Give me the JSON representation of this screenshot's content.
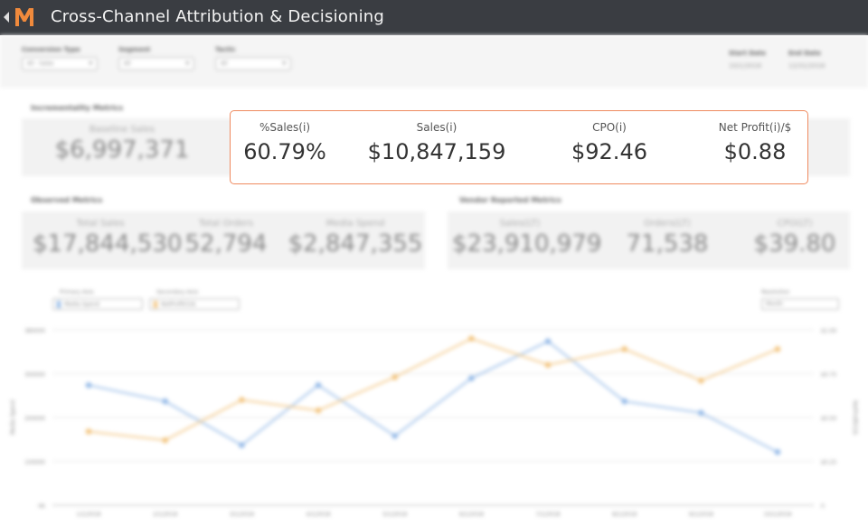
{
  "header": {
    "title": "Cross-Channel Attribution & Decisioning",
    "logo_letter": "M",
    "colors": {
      "bar": "#3a3d42",
      "logo": "#f08a3c"
    }
  },
  "filters": [
    {
      "label": "Conversion Type",
      "value": "All - Sales"
    },
    {
      "label": "Segment",
      "value": "All"
    },
    {
      "label": "Tactic",
      "value": "All"
    }
  ],
  "dates": {
    "start_label": "Start Date",
    "start_value": "10/1/2018",
    "end_label": "End Date",
    "end_value": "12/31/2018"
  },
  "incrementality": {
    "title": "Incrementality Metrics",
    "baseline_label": "Baseline Sales",
    "baseline_value": "$6,997,371"
  },
  "highlight": {
    "border_color": "#ef8a5f",
    "metrics": [
      {
        "label": "%Sales(i)",
        "value": "60.79%"
      },
      {
        "label": "Sales(i)",
        "value": "$10,847,159"
      },
      {
        "label": "CPO(i)",
        "value": "$92.46"
      },
      {
        "label": "Net Profit(i)/$",
        "value": "$0.88"
      }
    ]
  },
  "observed": {
    "title": "Observed Metrics",
    "metrics": [
      {
        "label": "Total Sales",
        "value": "$17,844,530"
      },
      {
        "label": "Total Orders",
        "value": "52,794"
      },
      {
        "label": "Media Spend",
        "value": "$2,847,355"
      }
    ]
  },
  "vendor": {
    "title": "Vendor Reported Metrics",
    "metrics": [
      {
        "label": "Sales(LT)",
        "value": "$23,910,979"
      },
      {
        "label": "Orders(LT)",
        "value": "71,538"
      },
      {
        "label": "CPO(LT)",
        "value": "$39.80"
      }
    ]
  },
  "axis_controls": {
    "primary_label": "Primary Axis",
    "primary_value": "Media Spend",
    "secondary_label": "Secondary Axis",
    "secondary_value": "NetProfit(i)/$",
    "resolution_label": "Resolution",
    "resolution_value": "Month"
  },
  "chart_data": {
    "type": "line",
    "x": [
      "1/1/2018",
      "2/1/2018",
      "3/1/2018",
      "4/1/2018",
      "5/1/2018",
      "6/1/2018",
      "7/1/2018",
      "8/1/2018",
      "9/1/2018",
      "10/1/2018"
    ],
    "ylabel": "Media Spend",
    "y2label": "NetProfit(i)/$",
    "ylim": [
      0,
      380000
    ],
    "y_ticks": [
      "0K",
      "100000",
      "200000",
      "300000",
      "380000"
    ],
    "y2lim": [
      0,
      1.0
    ],
    "y2_ticks": [
      "0",
      "$0.25",
      "$0.50",
      "$0.75",
      "$1.00"
    ],
    "series": [
      {
        "name": "Media Spend",
        "axis": "primary",
        "color": "#8fb6e6",
        "values": [
          260000,
          225000,
          130000,
          260000,
          150000,
          275000,
          355000,
          225000,
          200000,
          115000
        ]
      },
      {
        "name": "NetProfit(i)/$",
        "axis": "secondary",
        "color": "#f2c27a",
        "values": [
          0.42,
          0.37,
          0.6,
          0.54,
          0.73,
          0.95,
          0.8,
          0.89,
          0.71,
          0.89
        ]
      }
    ]
  }
}
